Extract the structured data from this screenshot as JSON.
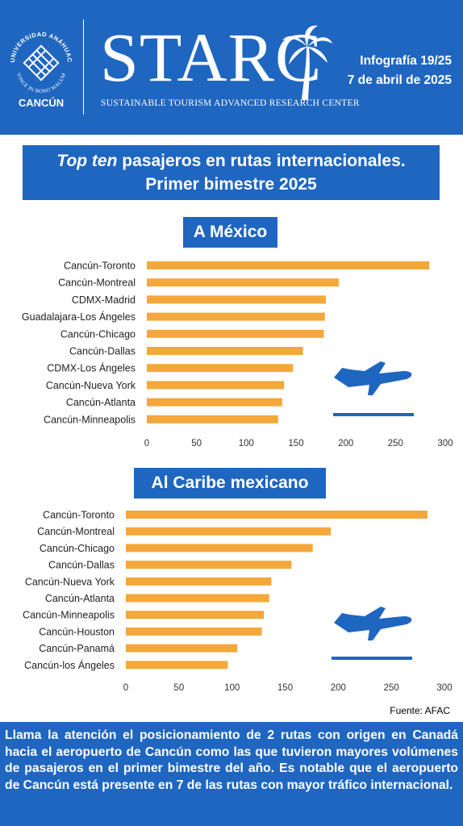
{
  "header": {
    "university_arc": "UNIVERSIDAD ANÁHUAC",
    "university_motto": "VINCE IN BONO MALUM",
    "campus": "CANCÚN",
    "brand": "STARC",
    "brand_subtitle": "SUSTAINABLE TOURISM ADVANCED RESEARCH CENTER",
    "infographic_number": "Infografía 19/25",
    "date": "7 de abril de 2025"
  },
  "title": {
    "italic_part": "Top ten",
    "rest_line1": " pasajeros en rutas internacionales.",
    "line2": "Primer bimestre 2025"
  },
  "chart_data": [
    {
      "type": "bar",
      "orientation": "horizontal",
      "title": "A México",
      "categories": [
        "Cancún-Toronto",
        "Cancún-Montreal",
        "CDMX-Madrid",
        "Guadalajara-Los Ángeles",
        "Cancún-Chicago",
        "Cancún-Dallas",
        "CDMX-Los Ángeles",
        "Cancún-Nueva York",
        "Cancún-Atlanta",
        "Cancún-Minneapolis"
      ],
      "values": [
        284,
        193,
        180,
        179,
        178,
        157,
        147,
        138,
        136,
        132
      ],
      "xlim": [
        0,
        300
      ],
      "xticks": [
        0,
        50,
        100,
        150,
        200,
        250,
        300
      ],
      "bar_color": "#f4a73a",
      "grid": false
    },
    {
      "type": "bar",
      "orientation": "horizontal",
      "title": "Al Caribe mexicano",
      "categories": [
        "Cancún-Toronto",
        "Cancún-Montreal",
        "Cancún-Chicago",
        "Cancún-Dallas",
        "Cancún-Nueva York",
        "Cancún-Atlanta",
        "Cancún-Minneapolis",
        "Cancún-Houston",
        "Cancún-Panamá",
        "Cancún-los Ángeles"
      ],
      "values": [
        284,
        193,
        176,
        156,
        137,
        135,
        130,
        128,
        105,
        96
      ],
      "xlim": [
        0,
        300
      ],
      "xticks": [
        0,
        50,
        100,
        150,
        200,
        250,
        300
      ],
      "bar_color": "#f4a73a",
      "grid": false
    }
  ],
  "source": "Fuente: AFAC",
  "footer_text": "Llama la atención el posicionamiento de 2 rutas con origen en Canadá hacia el aeropuerto de Cancún como las que tuvieron mayores volúmenes de pasajeros en el primer bimestre del año. Es notable que el aeropuerto de Cancún está presente en 7 de las rutas con mayor tráfico internacional.",
  "colors": {
    "brand_blue": "#1f66c1",
    "bar_orange": "#f4a73a"
  },
  "icons": [
    "anahuac-logo-icon",
    "palm-tree-icon",
    "airplane-takeoff-icon"
  ]
}
